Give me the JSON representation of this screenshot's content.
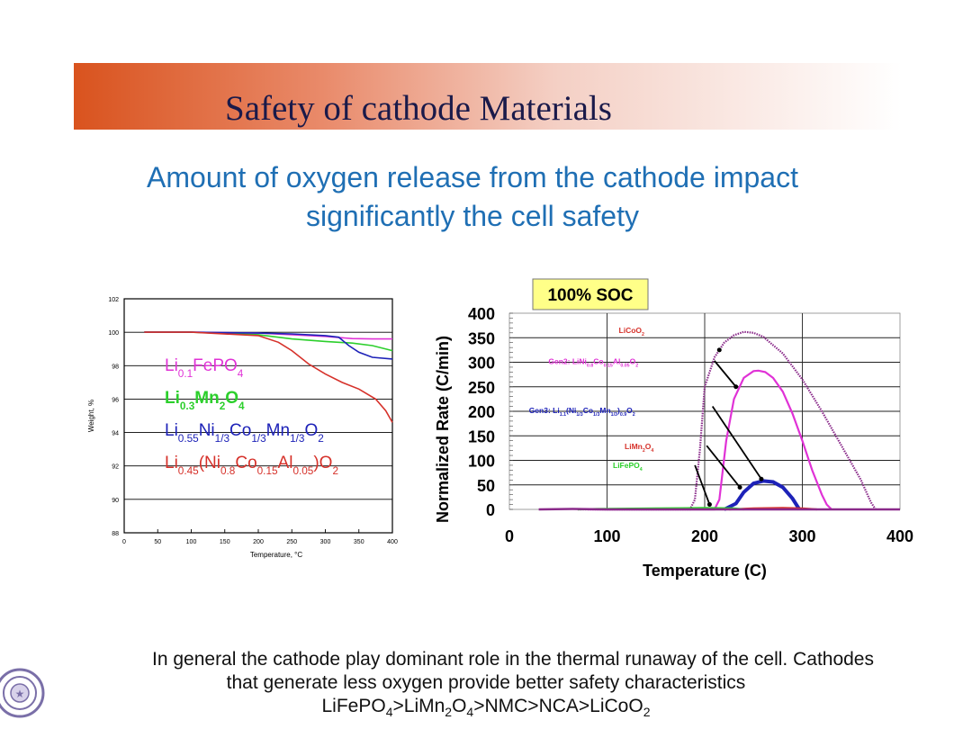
{
  "title": "Safety of cathode Materials",
  "subtitle": [
    "Amount of oxygen release from the cathode impact",
    "significantly the cell safety"
  ],
  "bottom": {
    "line1": "In general the cathode play dominant role in the thermal runaway of the cell. Cathodes",
    "line2": "that generate less oxygen provide better safety characteristics",
    "ranking": [
      {
        "t": "LiFePO",
        "s": "4"
      },
      {
        "t": ">LiMn",
        "s": "2"
      },
      {
        "t": "O",
        "s": "4"
      },
      {
        "t": ">NMC>NCA>LiCoO",
        "s": "2"
      }
    ]
  },
  "colors": {
    "red": "#d6312a",
    "green": "#2ccf2c",
    "blue": "#1d22b8",
    "magenta": "#e032d6",
    "purple": "#8a2a8a",
    "orange": "#e8a020",
    "title": "#1a1a4a",
    "subtitle": "#1f6fb4"
  },
  "chart_data": [
    {
      "type": "line",
      "title": "",
      "xlabel": "Temperature, °C",
      "ylabel": "Weight, %",
      "xlim": [
        0,
        400
      ],
      "ylim": [
        88,
        102
      ],
      "xticks": [
        0,
        50,
        100,
        150,
        200,
        250,
        300,
        350,
        400
      ],
      "yticks": [
        88,
        90,
        92,
        94,
        96,
        98,
        100,
        102
      ],
      "legend": [
        {
          "name": "Li0.1FePO4",
          "color": "#e032d6",
          "parts": [
            {
              "t": "Li",
              "s": ""
            },
            {
              "t": "",
              "s": "0.1"
            },
            {
              "t": "FePO",
              "s": ""
            },
            {
              "t": "",
              "s": "4"
            }
          ]
        },
        {
          "name": "Li0.3Mn2O4",
          "color": "#2ccf2c",
          "parts": [
            {
              "t": "Li",
              "s": ""
            },
            {
              "t": "",
              "s": "0.3"
            },
            {
              "t": "Mn",
              "s": ""
            },
            {
              "t": "",
              "s": "2"
            },
            {
              "t": "O",
              "s": ""
            },
            {
              "t": "",
              "s": "4"
            }
          ]
        },
        {
          "name": "Li0.55Ni1/3Co1/3Mn1/3O2",
          "color": "#1d22b8",
          "parts": [
            {
              "t": "Li",
              "s": ""
            },
            {
              "t": "",
              "s": "0.55"
            },
            {
              "t": "Ni",
              "s": ""
            },
            {
              "t": "",
              "s": "1/3"
            },
            {
              "t": "Co",
              "s": ""
            },
            {
              "t": "",
              "s": "1/3"
            },
            {
              "t": "Mn",
              "s": ""
            },
            {
              "t": "",
              "s": "1/3"
            },
            {
              "t": "O",
              "s": ""
            },
            {
              "t": "",
              "s": "2"
            }
          ]
        },
        {
          "name": "Li0.45(Ni0.8Co0.15Al0.05)O2",
          "color": "#d6312a",
          "parts": [
            {
              "t": "Li",
              "s": ""
            },
            {
              "t": "",
              "s": "0.45"
            },
            {
              "t": "(Ni",
              "s": ""
            },
            {
              "t": "",
              "s": "0.8"
            },
            {
              "t": "Co",
              "s": ""
            },
            {
              "t": "",
              "s": "0.15"
            },
            {
              "t": "Al",
              "s": ""
            },
            {
              "t": "",
              "s": "0.05"
            },
            {
              "t": ")O",
              "s": ""
            },
            {
              "t": "",
              "s": "2"
            }
          ]
        }
      ],
      "series": [
        {
          "name": "Li0.1FePO4",
          "color": "#e032d6",
          "x": [
            30,
            100,
            200,
            250,
            300,
            340,
            370,
            400
          ],
          "y": [
            100,
            100,
            99.95,
            99.85,
            99.75,
            99.62,
            99.6,
            99.6
          ]
        },
        {
          "name": "Li0.3Mn2O4",
          "color": "#2ccf2c",
          "x": [
            30,
            100,
            200,
            250,
            300,
            340,
            370,
            400
          ],
          "y": [
            100,
            100,
            99.85,
            99.6,
            99.45,
            99.35,
            99.2,
            98.9
          ]
        },
        {
          "name": "Li0.55Ni1/3Co1/3Mn1/3O2",
          "color": "#1d22b8",
          "x": [
            30,
            100,
            200,
            250,
            300,
            320,
            335,
            350,
            370,
            400
          ],
          "y": [
            100,
            100,
            99.95,
            99.9,
            99.8,
            99.7,
            99.2,
            98.8,
            98.5,
            98.4
          ]
        },
        {
          "name": "Li0.45(Ni0.8Co0.15Al0.05)O2",
          "color": "#d6312a",
          "x": [
            30,
            100,
            200,
            230,
            250,
            275,
            300,
            325,
            350,
            375,
            390,
            400
          ],
          "y": [
            100,
            100,
            99.8,
            99.4,
            98.9,
            98.1,
            97.5,
            97.0,
            96.6,
            96.0,
            95.3,
            94.6
          ]
        }
      ]
    },
    {
      "type": "line",
      "title": "100% SOC",
      "xlabel": "Temperature (C)",
      "ylabel": "Normalized Rate (C/min)",
      "xlim": [
        0,
        400
      ],
      "ylim": [
        0,
        400
      ],
      "xticks": [
        0,
        100,
        200,
        300,
        400
      ],
      "yticks": [
        0,
        50,
        100,
        150,
        200,
        250,
        300,
        350,
        400
      ],
      "annotations": [
        {
          "parts": [
            {
              "t": "LiCoO",
              "s": ""
            },
            {
              "t": "",
              "s": "2"
            }
          ],
          "color": "#d6312a",
          "tx": 112,
          "ty": 365,
          "x": 214,
          "y": 325,
          "head": [
            215,
            325
          ]
        },
        {
          "parts": [
            {
              "t": "Gen2: LiNi",
              "s": ""
            },
            {
              "t": "",
              "s": "0.8"
            },
            {
              "t": "Co",
              "s": ""
            },
            {
              "t": "",
              "s": "0.15"
            },
            {
              "t": "Al",
              "s": ""
            },
            {
              "t": "",
              "s": "0.05"
            },
            {
              "t": "O",
              "s": ""
            },
            {
              "t": "",
              "s": "2"
            }
          ],
          "color": "#e032d6",
          "tx": 40,
          "ty": 302,
          "x": 210,
          "y": 303,
          "head": [
            232,
            250
          ]
        },
        {
          "parts": [
            {
              "t": "Gen3: Li",
              "s": ""
            },
            {
              "t": "",
              "s": "1.1"
            },
            {
              "t": "(Ni",
              "s": ""
            },
            {
              "t": "",
              "s": "1/3"
            },
            {
              "t": "Co",
              "s": ""
            },
            {
              "t": "",
              "s": "1/3"
            },
            {
              "t": "Mn",
              "s": ""
            },
            {
              "t": "",
              "s": "1/3"
            },
            {
              "t": ")",
              "s": ""
            },
            {
              "t": "",
              "s": "0.9"
            },
            {
              "t": "O",
              "s": ""
            },
            {
              "t": "",
              "s": "2"
            }
          ],
          "color": "#1d22b8",
          "tx": 20,
          "ty": 202,
          "x": 208,
          "y": 210,
          "head": [
            258,
            62
          ]
        },
        {
          "parts": [
            {
              "t": "LiMn",
              "s": ""
            },
            {
              "t": "",
              "s": "2"
            },
            {
              "t": "O",
              "s": ""
            },
            {
              "t": "",
              "s": "4"
            }
          ],
          "color": "#d6312a",
          "tx": 118,
          "ty": 128,
          "x": 202,
          "y": 130,
          "head": [
            236,
            45
          ]
        },
        {
          "parts": [
            {
              "t": "LiFePO",
              "s": ""
            },
            {
              "t": "",
              "s": "4"
            }
          ],
          "color": "#2ccf2c",
          "tx": 106,
          "ty": 90,
          "x": 190,
          "y": 90,
          "head": [
            205,
            10
          ]
        }
      ],
      "series": [
        {
          "name": "LiCoO2",
          "color": "#8a2a8a",
          "x": [
            70,
            150,
            185,
            190,
            195,
            200,
            210,
            220,
            230,
            240,
            250,
            260,
            280,
            300,
            320,
            340,
            360,
            370,
            375
          ],
          "y": [
            0,
            0,
            0,
            20,
            120,
            250,
            310,
            340,
            355,
            362,
            360,
            352,
            318,
            265,
            200,
            130,
            60,
            15,
            0
          ]
        },
        {
          "name": "Gen2: LiNi0.8Co0.15Al0.05O2",
          "color": "#e032d6",
          "x": [
            80,
            150,
            210,
            215,
            222,
            230,
            240,
            250,
            255,
            262,
            270,
            280,
            290,
            300,
            310,
            320,
            325,
            330
          ],
          "y": [
            0,
            0,
            0,
            20,
            140,
            225,
            268,
            282,
            283,
            280,
            268,
            240,
            195,
            140,
            80,
            30,
            10,
            0
          ]
        },
        {
          "name": "Gen3: Li1.1(Ni1/3Co1/3Mn1/3)0.9O2",
          "color": "#1d22b8",
          "x": [
            220,
            232,
            240,
            250,
            260,
            270,
            280,
            290,
            297
          ],
          "y": [
            0,
            12,
            35,
            53,
            58,
            56,
            45,
            22,
            0
          ]
        },
        {
          "name": "LiMn2O4",
          "color": "#d6312a",
          "x": [
            225,
            250,
            280,
            300,
            315
          ],
          "y": [
            0,
            2,
            3,
            2,
            0
          ]
        },
        {
          "name": "LiFePO4",
          "color": "#2ccf2c",
          "x": [
            70,
            90,
            150,
            200,
            230,
            240
          ],
          "y": [
            0,
            1,
            2,
            3,
            2,
            0
          ]
        },
        {
          "name": "baseline",
          "color": "#8a2a8a",
          "x": [
            30,
            65,
            100,
            200,
            300,
            400
          ],
          "y": [
            0,
            1,
            0,
            0,
            0,
            0
          ]
        }
      ]
    }
  ]
}
